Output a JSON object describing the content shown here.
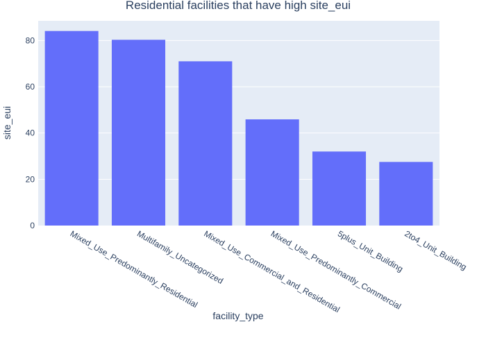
{
  "chart_data": {
    "type": "bar",
    "title": "Residential facilities that have high site_eui",
    "xlabel": "facility_type",
    "ylabel": "site_eui",
    "categories": [
      "Mixed_Use_Predominantly_Residential",
      "Multifamily_Uncategorized",
      "Mixed_Use_Commercial_and_Residential",
      "Mixed_Use_Predominantly_Commercial",
      "5plus_Unit_Building",
      "2to4_Unit_Building"
    ],
    "values": [
      84.1,
      80.3,
      71.0,
      45.9,
      32.0,
      27.5
    ],
    "ylim": [
      0,
      88.5
    ],
    "yticks": [
      0,
      20,
      40,
      60,
      80
    ],
    "grid": true,
    "colors": {
      "bar": "#636efa",
      "plot_bg": "#e5ecf6",
      "grid": "#ffffff",
      "text": "#2a3f5f"
    }
  }
}
